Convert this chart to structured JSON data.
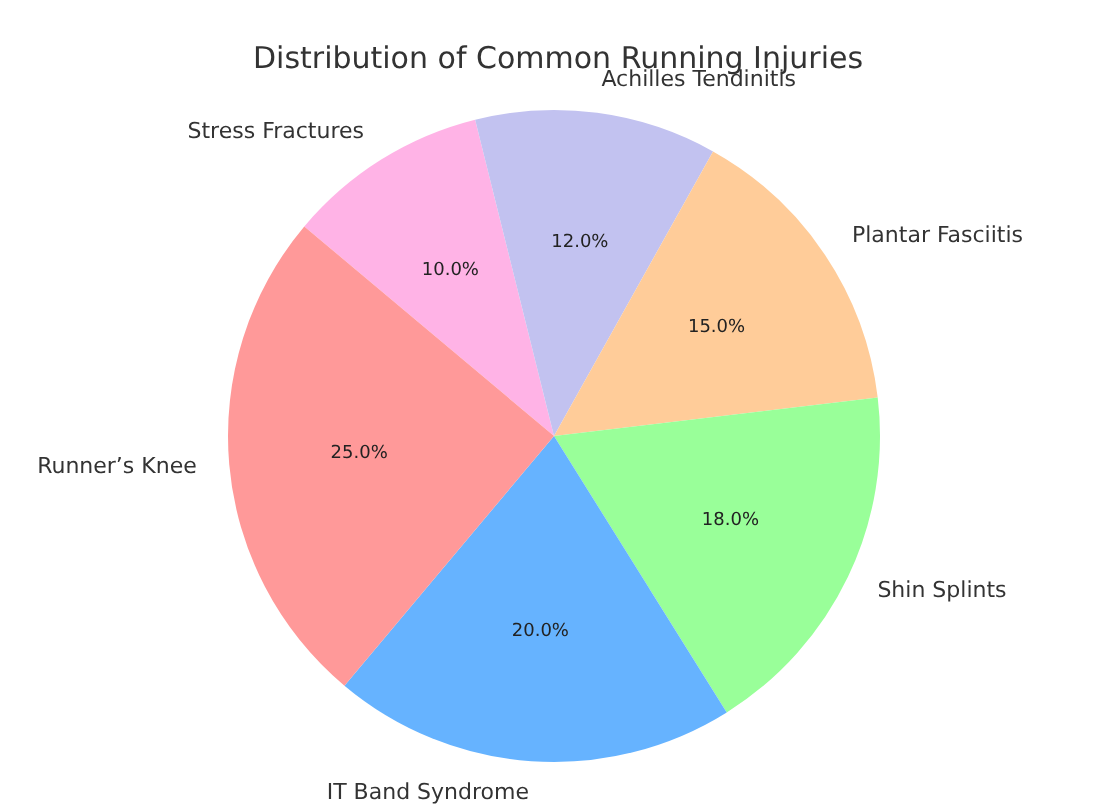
{
  "chart_data": {
    "type": "pie",
    "title": "Distribution of Common Running Injuries",
    "categories": [
      "Stress Fractures",
      "Achilles Tendinitis",
      "Plantar Fasciitis",
      "Shin Splints",
      "IT Band Syndrome",
      "Runner’s Knee"
    ],
    "values": [
      10,
      12,
      15,
      18,
      20,
      25
    ],
    "colors": [
      "#ffb3e6",
      "#c2c2f0",
      "#ffcc99",
      "#99ff99",
      "#66b3ff",
      "#ff9999"
    ],
    "value_labels": [
      "10.0%",
      "12.0%",
      "15.0%",
      "18.0%",
      "20.0%",
      "25.0%"
    ],
    "legend": false
  }
}
